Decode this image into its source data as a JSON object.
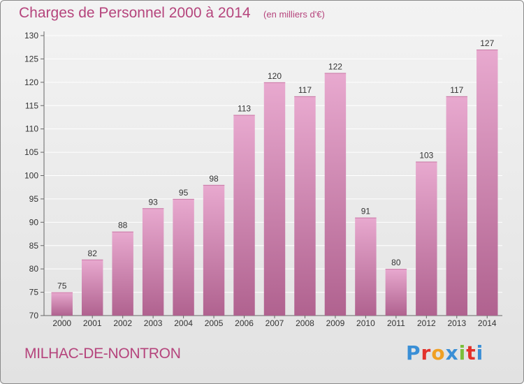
{
  "title": "Charges de Personnel 2000 à 2014",
  "subtitle": "(en milliers d'€)",
  "place": "MILHAC-DE-NONTRON",
  "logo": {
    "letters": [
      "P",
      "r",
      "o",
      "x",
      "i",
      "t",
      "i"
    ],
    "colors": [
      "#3a8fd6",
      "#e3322b",
      "#f0a023",
      "#3a8fd6",
      "#7bbf3a",
      "#e3322b",
      "#3a8fd6"
    ]
  },
  "colors": {
    "accent": "#b5447c",
    "bar_top": "#e8a9cf",
    "bar_bottom": "#b0628f"
  },
  "chart_data": {
    "type": "bar",
    "categories": [
      "2000",
      "2001",
      "2002",
      "2003",
      "2004",
      "2005",
      "2006",
      "2007",
      "2008",
      "2009",
      "2010",
      "2011",
      "2012",
      "2013",
      "2014"
    ],
    "values": [
      75,
      82,
      88,
      93,
      95,
      98,
      113,
      120,
      117,
      122,
      91,
      80,
      103,
      117,
      127
    ],
    "ylim": [
      70,
      130
    ],
    "yticks": [
      70,
      75,
      80,
      85,
      90,
      95,
      100,
      105,
      110,
      115,
      120,
      125,
      130
    ],
    "grid": true,
    "data_labels": true
  }
}
